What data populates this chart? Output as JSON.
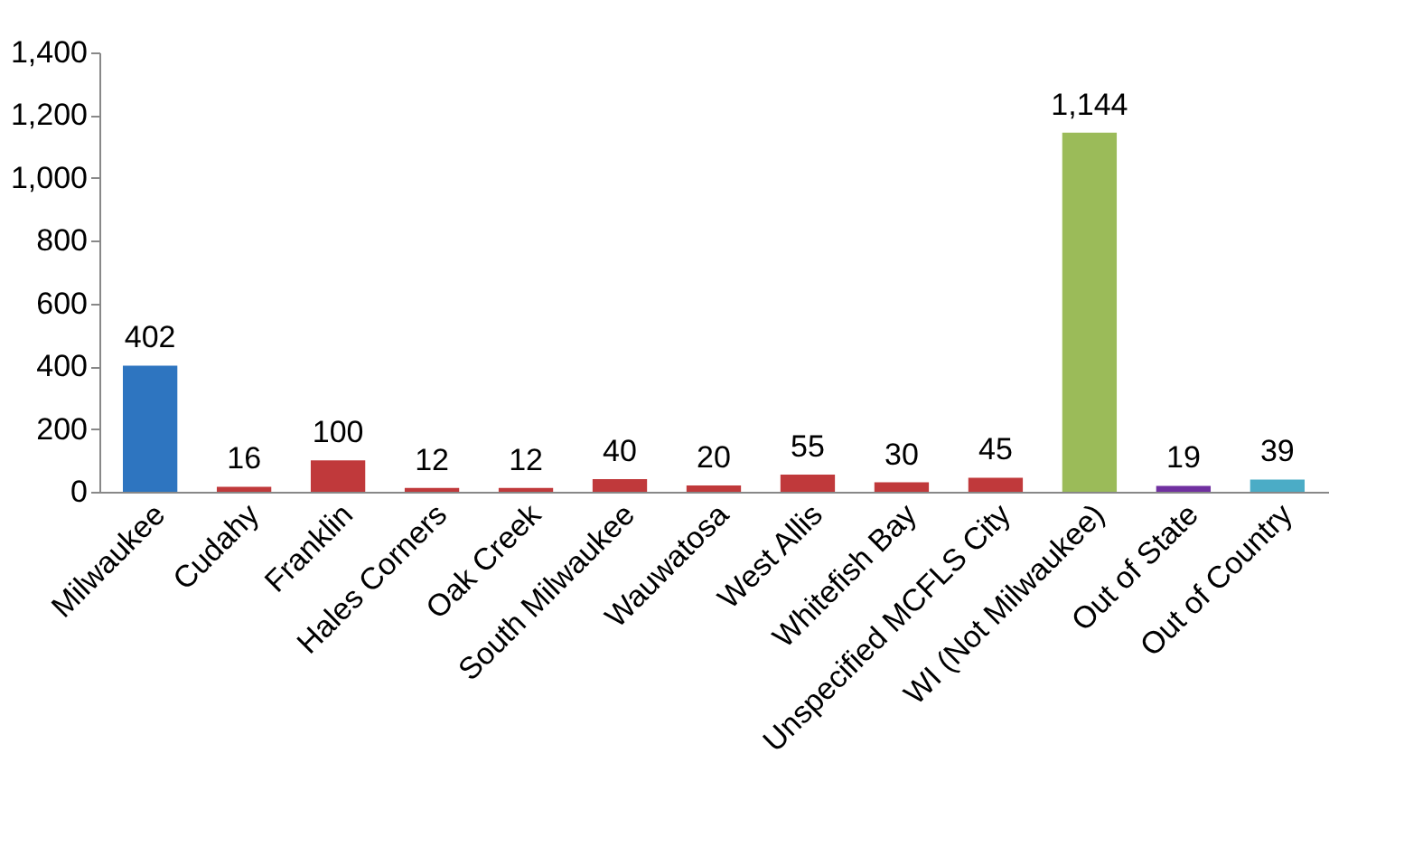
{
  "chart_data": {
    "type": "bar",
    "categories": [
      "Milwaukee",
      "Cudahy",
      "Franklin",
      "Hales Corners",
      "Oak Creek",
      "South Milwaukee",
      "Wauwatosa",
      "West Allis",
      "Whitefish Bay",
      "Unspecified MCFLS City",
      "WI (Not Milwaukee)",
      "Out of State",
      "Out of Country"
    ],
    "values": [
      402,
      16,
      100,
      12,
      12,
      40,
      20,
      55,
      30,
      45,
      1144,
      19,
      39
    ],
    "colors": [
      "#2e75c0",
      "#c0393b",
      "#c0393b",
      "#c0393b",
      "#c0393b",
      "#c0393b",
      "#c0393b",
      "#c0393b",
      "#c0393b",
      "#c0393b",
      "#9bbb59",
      "#7030a0",
      "#4bacc6"
    ],
    "ylim": [
      0,
      1400
    ],
    "yticks": [
      {
        "value": 0,
        "label": "0"
      },
      {
        "value": 200,
        "label": "200"
      },
      {
        "value": 400,
        "label": "400"
      },
      {
        "value": 600,
        "label": "600"
      },
      {
        "value": 800,
        "label": "800"
      },
      {
        "value": 1000,
        "label": "1,000"
      },
      {
        "value": 1200,
        "label": "1,200"
      },
      {
        "value": 1400,
        "label": "1,400"
      }
    ],
    "value_labels": [
      "402",
      "16",
      "100",
      "12",
      "12",
      "40",
      "20",
      "55",
      "30",
      "45",
      "1,144",
      "19",
      "39"
    ],
    "grid": false,
    "legend": false
  }
}
